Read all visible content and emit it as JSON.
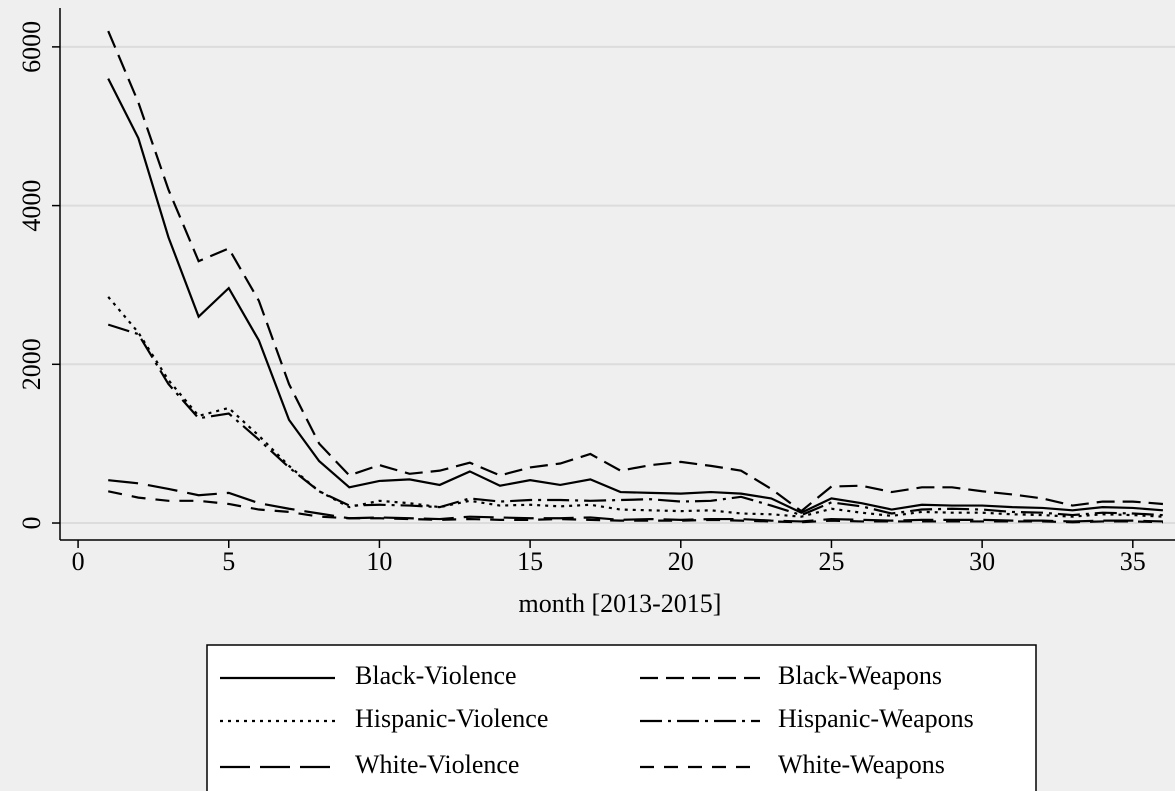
{
  "chart_data": {
    "type": "line",
    "xlabel": "month [2013-2015]",
    "x": [
      1,
      2,
      3,
      4,
      5,
      6,
      7,
      8,
      9,
      10,
      11,
      12,
      13,
      14,
      15,
      16,
      17,
      18,
      19,
      20,
      21,
      22,
      23,
      24,
      25,
      26,
      27,
      28,
      29,
      30,
      31,
      32,
      33,
      34,
      35,
      36
    ],
    "series": [
      {
        "name": "Black-Violence",
        "color": "#000000",
        "style": "solid",
        "values": [
          5600,
          4850,
          3600,
          2600,
          2960,
          2300,
          1300,
          780,
          450,
          530,
          550,
          480,
          650,
          470,
          540,
          480,
          550,
          390,
          380,
          370,
          390,
          370,
          310,
          130,
          310,
          250,
          170,
          230,
          220,
          220,
          200,
          190,
          160,
          200,
          190,
          160
        ]
      },
      {
        "name": "Black-Weapons",
        "color": "#000000",
        "style": "dash",
        "values": [
          6200,
          5300,
          4200,
          3300,
          3460,
          2800,
          1750,
          1000,
          600,
          730,
          620,
          660,
          760,
          600,
          700,
          750,
          870,
          660,
          730,
          770,
          720,
          660,
          430,
          150,
          460,
          470,
          390,
          450,
          450,
          400,
          360,
          310,
          220,
          270,
          270,
          240
        ]
      },
      {
        "name": "Hispanic-Violence",
        "color": "#000000",
        "style": "dot",
        "values": [
          2850,
          2400,
          1800,
          1350,
          1450,
          1100,
          720,
          400,
          200,
          280,
          250,
          200,
          280,
          220,
          230,
          210,
          230,
          170,
          160,
          150,
          160,
          120,
          110,
          80,
          180,
          130,
          90,
          140,
          130,
          130,
          110,
          100,
          80,
          110,
          100,
          80
        ]
      },
      {
        "name": "Hispanic-Weapons",
        "color": "#000000",
        "style": "dashdot",
        "values": [
          2500,
          2380,
          1750,
          1320,
          1380,
          1050,
          700,
          400,
          220,
          230,
          220,
          200,
          310,
          270,
          290,
          290,
          280,
          290,
          300,
          270,
          280,
          330,
          220,
          100,
          260,
          210,
          120,
          170,
          180,
          170,
          140,
          130,
          100,
          130,
          120,
          100
        ]
      },
      {
        "name": "White-Violence",
        "color": "#000000",
        "style": "longdash",
        "values": [
          540,
          500,
          430,
          350,
          380,
          250,
          180,
          120,
          60,
          70,
          60,
          50,
          80,
          70,
          60,
          60,
          70,
          40,
          50,
          40,
          50,
          50,
          30,
          20,
          50,
          40,
          30,
          40,
          40,
          40,
          30,
          30,
          20,
          30,
          30,
          20
        ]
      },
      {
        "name": "White-Weapons",
        "color": "#000000",
        "style": "shortdash",
        "values": [
          400,
          320,
          280,
          280,
          240,
          170,
          140,
          80,
          60,
          60,
          50,
          40,
          50,
          40,
          40,
          50,
          40,
          30,
          30,
          30,
          40,
          30,
          20,
          10,
          30,
          20,
          20,
          20,
          20,
          20,
          20,
          20,
          10,
          20,
          20,
          10
        ]
      }
    ],
    "xlim": [
      -0.6,
      36.4
    ],
    "xticks": [
      0,
      5,
      10,
      15,
      20,
      25,
      30,
      35
    ],
    "ylim": [
      -214,
      6490
    ],
    "yticks": [
      0,
      2000,
      4000,
      6000
    ],
    "grid": true
  }
}
